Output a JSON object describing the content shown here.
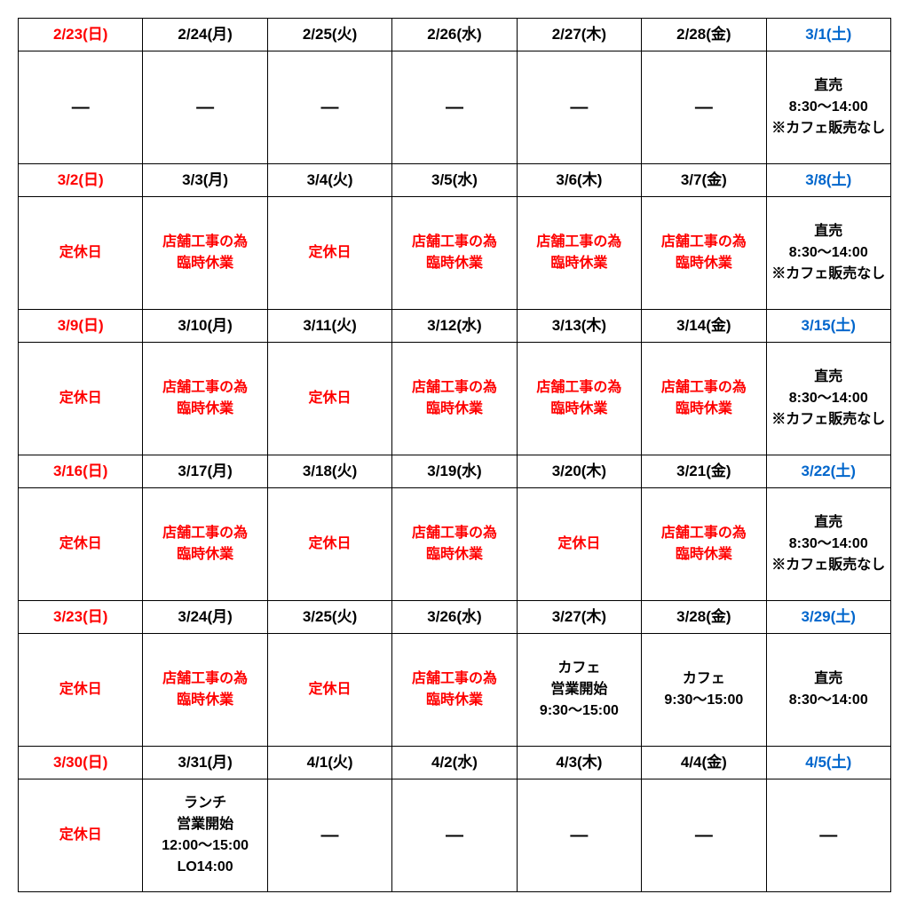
{
  "type": "table",
  "columns": 7,
  "header_colors": {
    "sunday": "#ff0000",
    "saturday": "#0066cc",
    "weekday": "#000000"
  },
  "content_colors": {
    "red": "#ff0000",
    "black": "#000000"
  },
  "border_color": "#000000",
  "background_color": "#ffffff",
  "font_family": "Meiryo",
  "header_fontsize": 17,
  "content_fontsize": 16,
  "weeks": [
    {
      "headers": [
        {
          "text": "2/23(日)",
          "cls": "sun"
        },
        {
          "text": "2/24(月)",
          "cls": "blk"
        },
        {
          "text": "2/25(火)",
          "cls": "blk"
        },
        {
          "text": "2/26(水)",
          "cls": "blk"
        },
        {
          "text": "2/27(木)",
          "cls": "blk"
        },
        {
          "text": "2/28(金)",
          "cls": "blk"
        },
        {
          "text": "3/1(土)",
          "cls": "sat"
        }
      ],
      "cells": [
        {
          "lines": [
            "—"
          ],
          "cls": "blk dash"
        },
        {
          "lines": [
            "—"
          ],
          "cls": "blk dash"
        },
        {
          "lines": [
            "—"
          ],
          "cls": "blk dash"
        },
        {
          "lines": [
            "—"
          ],
          "cls": "blk dash"
        },
        {
          "lines": [
            "—"
          ],
          "cls": "blk dash"
        },
        {
          "lines": [
            "—"
          ],
          "cls": "blk dash"
        },
        {
          "lines": [
            "直売",
            "8:30～14:00",
            "※カフェ販売なし"
          ],
          "cls": "blk"
        }
      ]
    },
    {
      "headers": [
        {
          "text": "3/2(日)",
          "cls": "sun"
        },
        {
          "text": "3/3(月)",
          "cls": "blk"
        },
        {
          "text": "3/4(火)",
          "cls": "blk"
        },
        {
          "text": "3/5(水)",
          "cls": "blk"
        },
        {
          "text": "3/6(木)",
          "cls": "blk"
        },
        {
          "text": "3/7(金)",
          "cls": "blk"
        },
        {
          "text": "3/8(土)",
          "cls": "sat"
        }
      ],
      "cells": [
        {
          "lines": [
            "定休日"
          ],
          "cls": "red"
        },
        {
          "lines": [
            "店舗工事の為",
            "臨時休業"
          ],
          "cls": "red"
        },
        {
          "lines": [
            "定休日"
          ],
          "cls": "red"
        },
        {
          "lines": [
            "店舗工事の為",
            "臨時休業"
          ],
          "cls": "red"
        },
        {
          "lines": [
            "店舗工事の為",
            "臨時休業"
          ],
          "cls": "red"
        },
        {
          "lines": [
            "店舗工事の為",
            "臨時休業"
          ],
          "cls": "red"
        },
        {
          "lines": [
            "直売",
            "8:30～14:00",
            "※カフェ販売なし"
          ],
          "cls": "blk"
        }
      ]
    },
    {
      "headers": [
        {
          "text": "3/9(日)",
          "cls": "sun"
        },
        {
          "text": "3/10(月)",
          "cls": "blk"
        },
        {
          "text": "3/11(火)",
          "cls": "blk"
        },
        {
          "text": "3/12(水)",
          "cls": "blk"
        },
        {
          "text": "3/13(木)",
          "cls": "blk"
        },
        {
          "text": "3/14(金)",
          "cls": "blk"
        },
        {
          "text": "3/15(土)",
          "cls": "sat"
        }
      ],
      "cells": [
        {
          "lines": [
            "定休日"
          ],
          "cls": "red"
        },
        {
          "lines": [
            "店舗工事の為",
            "臨時休業"
          ],
          "cls": "red"
        },
        {
          "lines": [
            "定休日"
          ],
          "cls": "red"
        },
        {
          "lines": [
            "店舗工事の為",
            "臨時休業"
          ],
          "cls": "red"
        },
        {
          "lines": [
            "店舗工事の為",
            "臨時休業"
          ],
          "cls": "red"
        },
        {
          "lines": [
            "店舗工事の為",
            "臨時休業"
          ],
          "cls": "red"
        },
        {
          "lines": [
            "直売",
            "8:30～14:00",
            "※カフェ販売なし"
          ],
          "cls": "blk"
        }
      ]
    },
    {
      "headers": [
        {
          "text": "3/16(日)",
          "cls": "sun"
        },
        {
          "text": "3/17(月)",
          "cls": "blk"
        },
        {
          "text": "3/18(火)",
          "cls": "blk"
        },
        {
          "text": "3/19(水)",
          "cls": "blk"
        },
        {
          "text": "3/20(木)",
          "cls": "blk"
        },
        {
          "text": "3/21(金)",
          "cls": "blk"
        },
        {
          "text": "3/22(土)",
          "cls": "sat"
        }
      ],
      "cells": [
        {
          "lines": [
            "定休日"
          ],
          "cls": "red"
        },
        {
          "lines": [
            "店舗工事の為",
            "臨時休業"
          ],
          "cls": "red"
        },
        {
          "lines": [
            "定休日"
          ],
          "cls": "red"
        },
        {
          "lines": [
            "店舗工事の為",
            "臨時休業"
          ],
          "cls": "red"
        },
        {
          "lines": [
            "定休日"
          ],
          "cls": "red"
        },
        {
          "lines": [
            "店舗工事の為",
            "臨時休業"
          ],
          "cls": "red"
        },
        {
          "lines": [
            "直売",
            "8:30～14:00",
            "※カフェ販売なし"
          ],
          "cls": "blk"
        }
      ]
    },
    {
      "headers": [
        {
          "text": "3/23(日)",
          "cls": "sun"
        },
        {
          "text": "3/24(月)",
          "cls": "blk"
        },
        {
          "text": "3/25(火)",
          "cls": "blk"
        },
        {
          "text": "3/26(水)",
          "cls": "blk"
        },
        {
          "text": "3/27(木)",
          "cls": "blk"
        },
        {
          "text": "3/28(金)",
          "cls": "blk"
        },
        {
          "text": "3/29(土)",
          "cls": "sat"
        }
      ],
      "cells": [
        {
          "lines": [
            "定休日"
          ],
          "cls": "red"
        },
        {
          "lines": [
            "店舗工事の為",
            "臨時休業"
          ],
          "cls": "red"
        },
        {
          "lines": [
            "定休日"
          ],
          "cls": "red"
        },
        {
          "lines": [
            "店舗工事の為",
            "臨時休業"
          ],
          "cls": "red"
        },
        {
          "lines": [
            "カフェ",
            "営業開始",
            "9:30～15:00"
          ],
          "cls": "blk"
        },
        {
          "lines": [
            "カフェ",
            "9:30～15:00"
          ],
          "cls": "blk"
        },
        {
          "lines": [
            "直売",
            "8:30～14:00"
          ],
          "cls": "blk"
        }
      ]
    },
    {
      "headers": [
        {
          "text": "3/30(日)",
          "cls": "sun"
        },
        {
          "text": "3/31(月)",
          "cls": "blk"
        },
        {
          "text": "4/1(火)",
          "cls": "blk"
        },
        {
          "text": "4/2(水)",
          "cls": "blk"
        },
        {
          "text": "4/3(木)",
          "cls": "blk"
        },
        {
          "text": "4/4(金)",
          "cls": "blk"
        },
        {
          "text": "4/5(土)",
          "cls": "sat"
        }
      ],
      "cells": [
        {
          "lines": [
            "定休日"
          ],
          "cls": "red"
        },
        {
          "lines": [
            "ランチ",
            "営業開始",
            "12:00～15:00",
            "LO14:00"
          ],
          "cls": "blk"
        },
        {
          "lines": [
            "—"
          ],
          "cls": "blk dash"
        },
        {
          "lines": [
            "—"
          ],
          "cls": "blk dash"
        },
        {
          "lines": [
            "—"
          ],
          "cls": "blk dash"
        },
        {
          "lines": [
            "—"
          ],
          "cls": "blk dash"
        },
        {
          "lines": [
            "—"
          ],
          "cls": "blk dash"
        }
      ]
    }
  ]
}
